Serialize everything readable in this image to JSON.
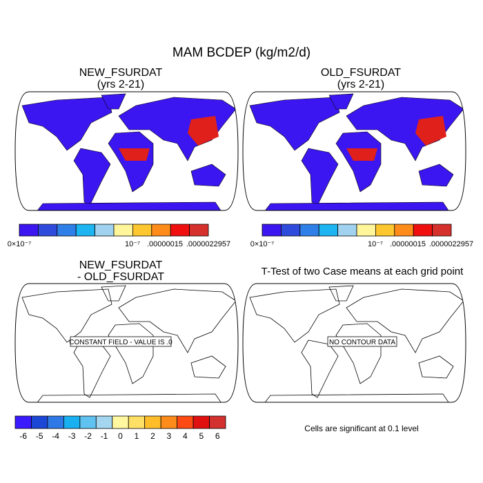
{
  "title": "MAM BCDEP (kg/m2/d)",
  "panels": [
    {
      "title": "NEW_FSURDAT",
      "subtitle": "(yrs 2-21)"
    },
    {
      "title": "OLD_FSURDAT",
      "subtitle": "(yrs 2-21)"
    },
    {
      "title": "NEW_FSURDAT",
      "subtitle": "- OLD_FSURDAT",
      "note": "CONSTANT FIELD - VALUE IS .0"
    },
    {
      "title": "T-Test of two Case means at each grid point",
      "note": "NO CONTOUR DATA"
    }
  ],
  "top_colorbar": {
    "colors": [
      "#3c16f0",
      "#2e4bdc",
      "#2f7fe8",
      "#1cb5f2",
      "#a0d2f0",
      "#fff59a",
      "#ffc72f",
      "#ff8c1a",
      "#f00f0f",
      "#d6302c"
    ],
    "labels": [
      "0×10⁻⁷",
      "10⁻⁷",
      ".00000015",
      ".0000022957"
    ]
  },
  "bottom_colorbar": {
    "colors": [
      "#3a1aff",
      "#1c46d6",
      "#2e79e6",
      "#18b0f0",
      "#5fc2f0",
      "#a4d6f0",
      "#fff8a0",
      "#ffe066",
      "#ffbd2a",
      "#ff8c1a",
      "#ff4a14",
      "#e01010",
      "#d33030"
    ],
    "labels": [
      "-6",
      "-5",
      "-4",
      "-3",
      "-2",
      "-1",
      "0",
      "1",
      "2",
      "3",
      "4",
      "5",
      "6"
    ]
  },
  "footnote": "Cells are significant at 0.1 level"
}
